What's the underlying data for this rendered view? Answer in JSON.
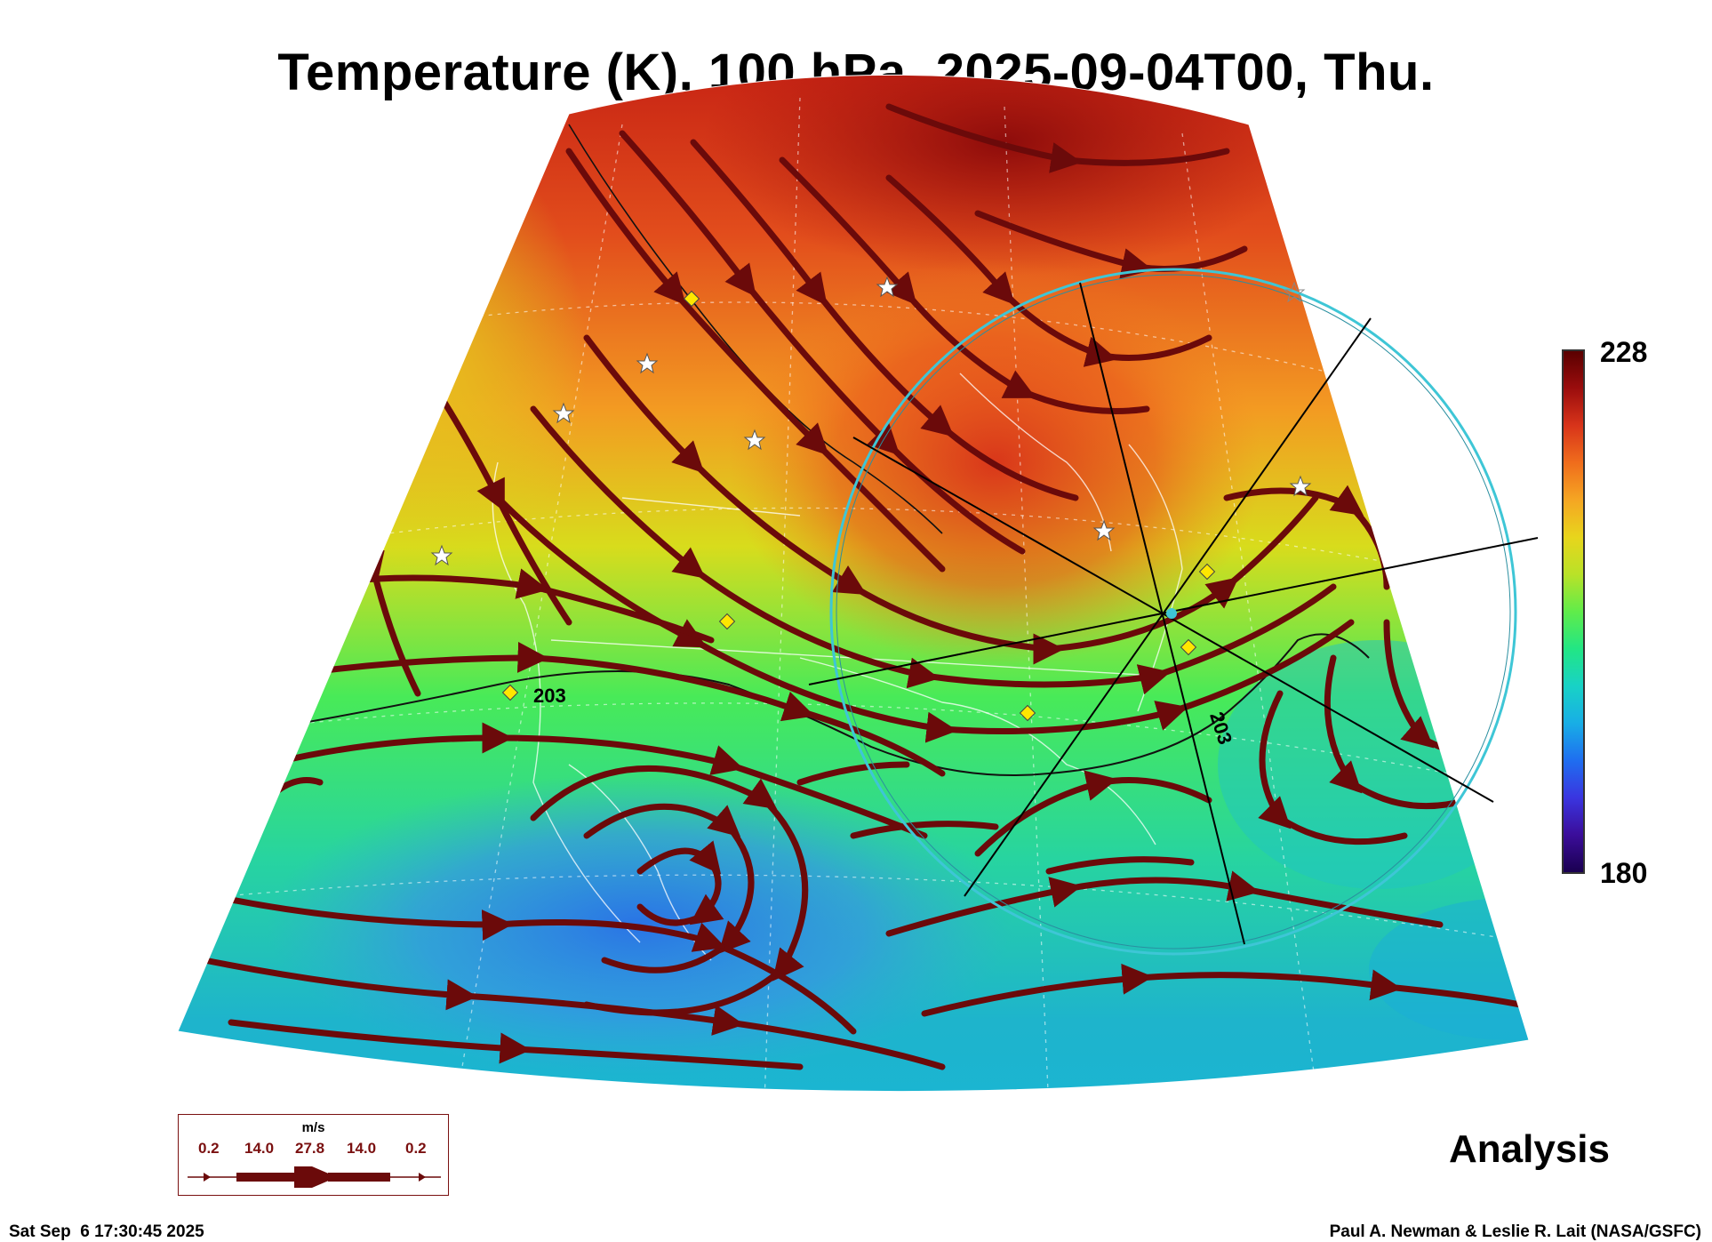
{
  "title": "Temperature (K), 100 hPa, 2025-09-04T00, Thu.",
  "colorbar": {
    "max": "228",
    "min": "180"
  },
  "contour_labels": [
    "203",
    "203"
  ],
  "product_label": "Analysis",
  "wind_legend": {
    "unit": "m/s",
    "values": [
      "0.2",
      "14.0",
      "27.8",
      "14.0",
      "0.2"
    ]
  },
  "footer": {
    "timestamp": "Sat Sep  6 17:30:45 2025",
    "credit": "Paul A. Newman & Leslie R. Lait (NASA/GSFC)"
  },
  "colors": {
    "streamline": "#6b0a0a",
    "circle": "#3ec6d6",
    "marker_diamond": "#ffe600",
    "marker_star": "#ffffff"
  }
}
